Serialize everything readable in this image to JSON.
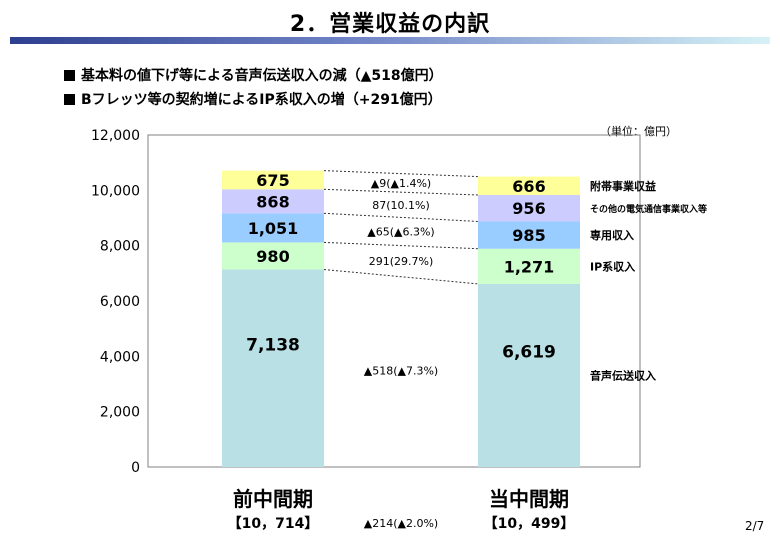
{
  "title": "2．営業収益の内訳",
  "bullets": [
    "基本料の値下げ等による音声伝送収入の減（▲518億円）",
    "Bフレッツ等の契約増によるIP系収入の増（+291億円）"
  ],
  "unit_note": "（単位：億円）",
  "page": "2/7",
  "chart_data": {
    "type": "bar",
    "stacked": true,
    "categories": [
      "前中間期",
      "当中間期"
    ],
    "category_totals": [
      "【10，714】",
      "【10，499】"
    ],
    "ylim": [
      0,
      12000
    ],
    "yticks": [
      "0",
      "2,000",
      "4,000",
      "6,000",
      "8,000",
      "10,000",
      "12,000"
    ],
    "series": [
      {
        "name": "音声伝送収入",
        "values": [
          7138,
          6619
        ],
        "labels": [
          "7,138",
          "6,619"
        ],
        "change": "▲518(▲7.3%)",
        "color": "#b9e0e4"
      },
      {
        "name": "IP系収入",
        "values": [
          980,
          1271
        ],
        "labels": [
          "980",
          "1,271"
        ],
        "change": "291(29.7%)",
        "color": "#ccffcc"
      },
      {
        "name": "専用収入",
        "values": [
          1051,
          985
        ],
        "labels": [
          "1,051",
          "985"
        ],
        "change": "▲65(▲6.3%)",
        "color": "#99ccff"
      },
      {
        "name": "その他の電気通信事業収入等",
        "values": [
          868,
          956
        ],
        "labels": [
          "868",
          "956"
        ],
        "change": "87(10.1%)",
        "color": "#ccccff"
      },
      {
        "name": "附帯事業収益",
        "values": [
          675,
          666
        ],
        "labels": [
          "675",
          "666"
        ],
        "change": "▲9(▲1.4%)",
        "color": "#ffff99"
      }
    ],
    "total_change": "▲214(▲2.0%)"
  }
}
